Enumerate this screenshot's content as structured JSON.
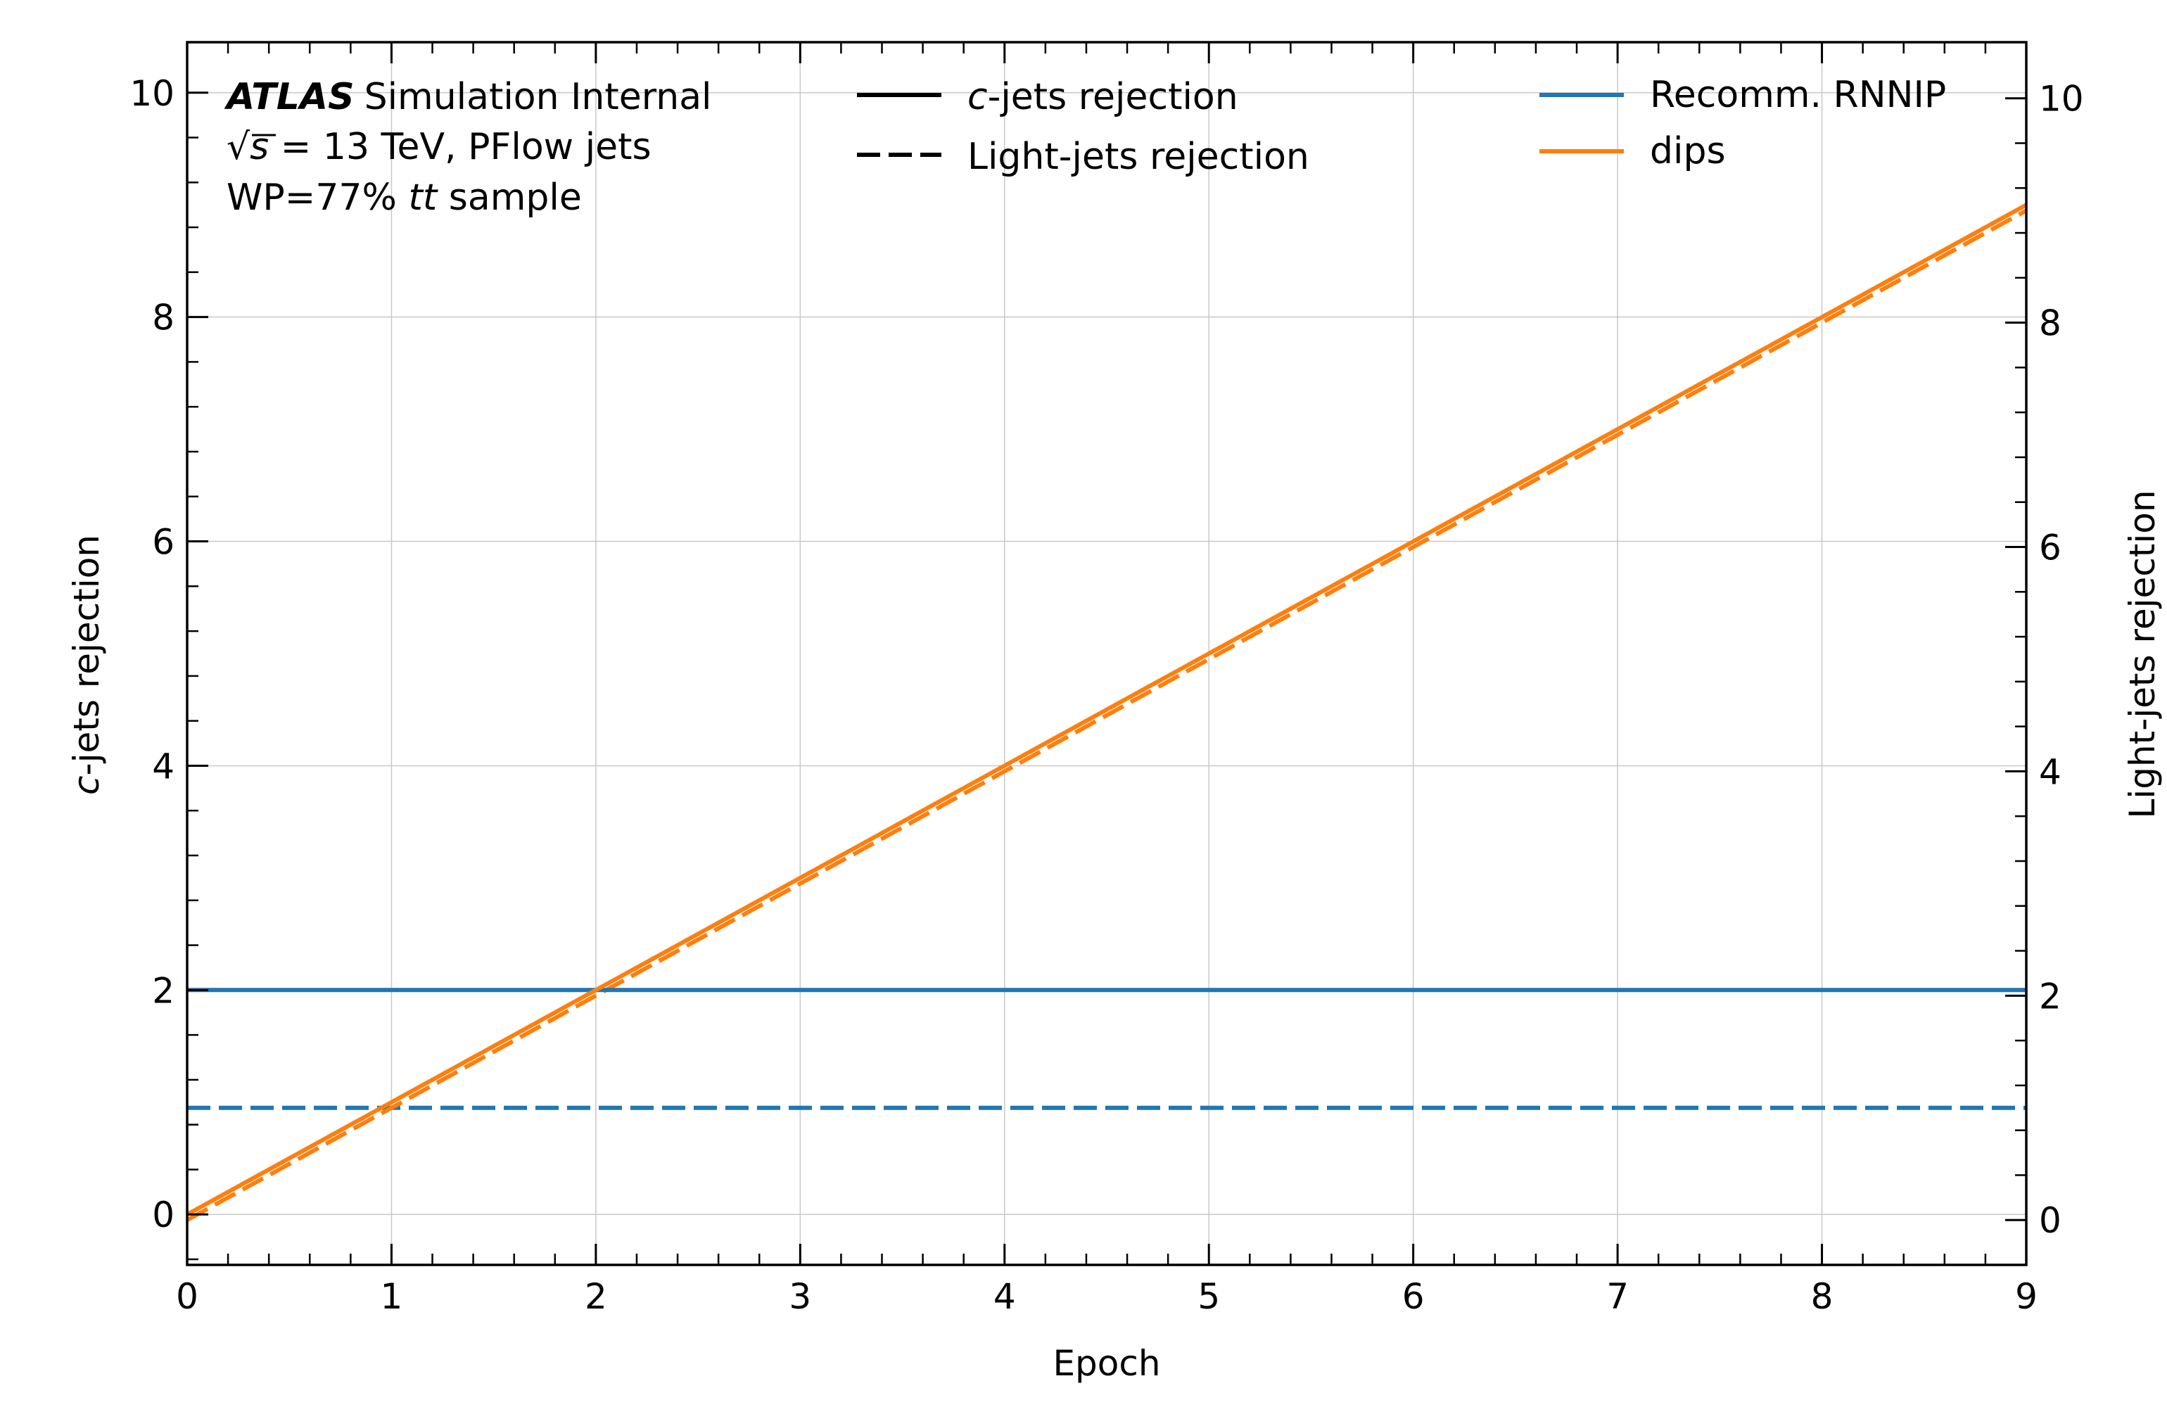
{
  "chart_data": {
    "type": "line",
    "xlabel": "Epoch",
    "ylabel_left_italic": "c",
    "ylabel_left_rest": "-jets rejection",
    "ylabel_right": "Light-jets rejection",
    "xlim": [
      0,
      9
    ],
    "ylim_left": [
      -0.45,
      10.45
    ],
    "ylim_right": [
      -0.4,
      10.5
    ],
    "xticks": [
      "0",
      "1",
      "2",
      "3",
      "4",
      "5",
      "6",
      "7",
      "8",
      "9"
    ],
    "yticks_left": [
      "0",
      "2",
      "4",
      "6",
      "8",
      "10"
    ],
    "yticks_right": [
      "0",
      "2",
      "4",
      "6",
      "8",
      "10"
    ],
    "grid": true,
    "annotation": {
      "atlas": "ATLAS",
      "status": "Simulation Internal",
      "sqrt_sym": "√",
      "s_sym": "s",
      "energy": " = 13 TeV, PFlow jets",
      "wp": "WP=77% ",
      "ttbar_t1": "t",
      "ttbar_t2": "t",
      "ttbar_bar": "̄",
      "sample": " sample"
    },
    "legend_styles": [
      {
        "label_italic": "c",
        "label_rest": "-jets rejection",
        "style": "solid"
      },
      {
        "label_italic": "",
        "label_rest": "Light-jets rejection",
        "style": "dashed"
      }
    ],
    "legend_models": [
      {
        "label": "Recomm. RNNIP",
        "color": "#1f77b4"
      },
      {
        "label": "dips",
        "color": "#ff7f0e"
      }
    ],
    "series": [
      {
        "name": "Recomm. RNNIP",
        "metric": "c-jets rejection",
        "axis": "left",
        "style": "solid",
        "color": "#1f77b4",
        "x": [
          0,
          9
        ],
        "y": [
          2,
          2
        ]
      },
      {
        "name": "Recomm. RNNIP",
        "metric": "Light-jets rejection",
        "axis": "right",
        "style": "dashed",
        "color": "#1f77b4",
        "x": [
          0,
          9
        ],
        "y": [
          1,
          1
        ]
      },
      {
        "name": "dips",
        "metric": "c-jets rejection",
        "axis": "left",
        "style": "solid",
        "color": "#ff7f0e",
        "x": [
          0,
          1,
          2,
          3,
          4,
          5,
          6,
          7,
          8,
          9
        ],
        "y": [
          0,
          1,
          2,
          3,
          4,
          5,
          6,
          7,
          8,
          9
        ]
      },
      {
        "name": "dips",
        "metric": "Light-jets rejection",
        "axis": "right",
        "style": "dashed",
        "color": "#ff7f0e",
        "x": [
          0,
          1,
          2,
          3,
          4,
          5,
          6,
          7,
          8,
          9
        ],
        "y": [
          0,
          1,
          2,
          3,
          4,
          5,
          6,
          7,
          8,
          9
        ]
      }
    ]
  }
}
